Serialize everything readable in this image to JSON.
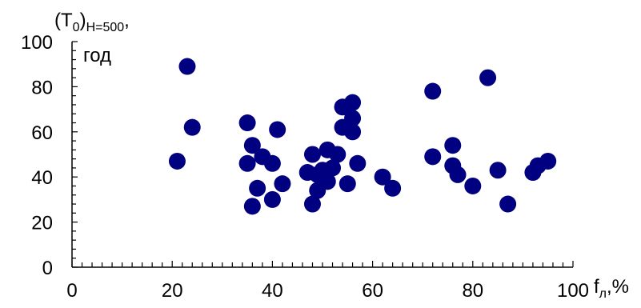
{
  "chart_data": {
    "type": "scatter",
    "ylabel": {
      "main": "(T",
      "sub0": "0",
      "close": ")",
      "subH": "H=500",
      "comma": ",",
      "line2": "год"
    },
    "xlabel": {
      "main": "f",
      "sub": "л",
      "rest": ",%"
    },
    "xlim": [
      0,
      100
    ],
    "ylim": [
      0,
      100
    ],
    "x_ticks": [
      "0",
      "20",
      "40",
      "60",
      "80",
      "100"
    ],
    "y_ticks": [
      "0",
      "20",
      "40",
      "60",
      "80",
      "100"
    ],
    "x_minor_step": 2,
    "y_minor_step": 4,
    "grid": false,
    "marker_color": "#000080",
    "points": [
      {
        "x": 21,
        "y": 47
      },
      {
        "x": 23,
        "y": 89
      },
      {
        "x": 24,
        "y": 62
      },
      {
        "x": 35,
        "y": 64
      },
      {
        "x": 35,
        "y": 46
      },
      {
        "x": 36,
        "y": 54
      },
      {
        "x": 36,
        "y": 27
      },
      {
        "x": 37,
        "y": 35
      },
      {
        "x": 38,
        "y": 49
      },
      {
        "x": 40,
        "y": 46
      },
      {
        "x": 40,
        "y": 30
      },
      {
        "x": 41,
        "y": 61
      },
      {
        "x": 42,
        "y": 37
      },
      {
        "x": 47,
        "y": 42
      },
      {
        "x": 48,
        "y": 50
      },
      {
        "x": 48,
        "y": 28
      },
      {
        "x": 49,
        "y": 41
      },
      {
        "x": 49,
        "y": 34
      },
      {
        "x": 50,
        "y": 43
      },
      {
        "x": 51,
        "y": 52
      },
      {
        "x": 51,
        "y": 38
      },
      {
        "x": 52,
        "y": 44
      },
      {
        "x": 53,
        "y": 50
      },
      {
        "x": 54,
        "y": 71
      },
      {
        "x": 54,
        "y": 62
      },
      {
        "x": 55,
        "y": 37
      },
      {
        "x": 56,
        "y": 73
      },
      {
        "x": 56,
        "y": 66
      },
      {
        "x": 56,
        "y": 60
      },
      {
        "x": 57,
        "y": 46
      },
      {
        "x": 62,
        "y": 40
      },
      {
        "x": 64,
        "y": 35
      },
      {
        "x": 72,
        "y": 78
      },
      {
        "x": 72,
        "y": 49
      },
      {
        "x": 76,
        "y": 54
      },
      {
        "x": 76,
        "y": 45
      },
      {
        "x": 77,
        "y": 41
      },
      {
        "x": 80,
        "y": 36
      },
      {
        "x": 83,
        "y": 84
      },
      {
        "x": 85,
        "y": 43
      },
      {
        "x": 87,
        "y": 28
      },
      {
        "x": 92,
        "y": 42
      },
      {
        "x": 93,
        "y": 45
      },
      {
        "x": 95,
        "y": 47
      }
    ]
  }
}
